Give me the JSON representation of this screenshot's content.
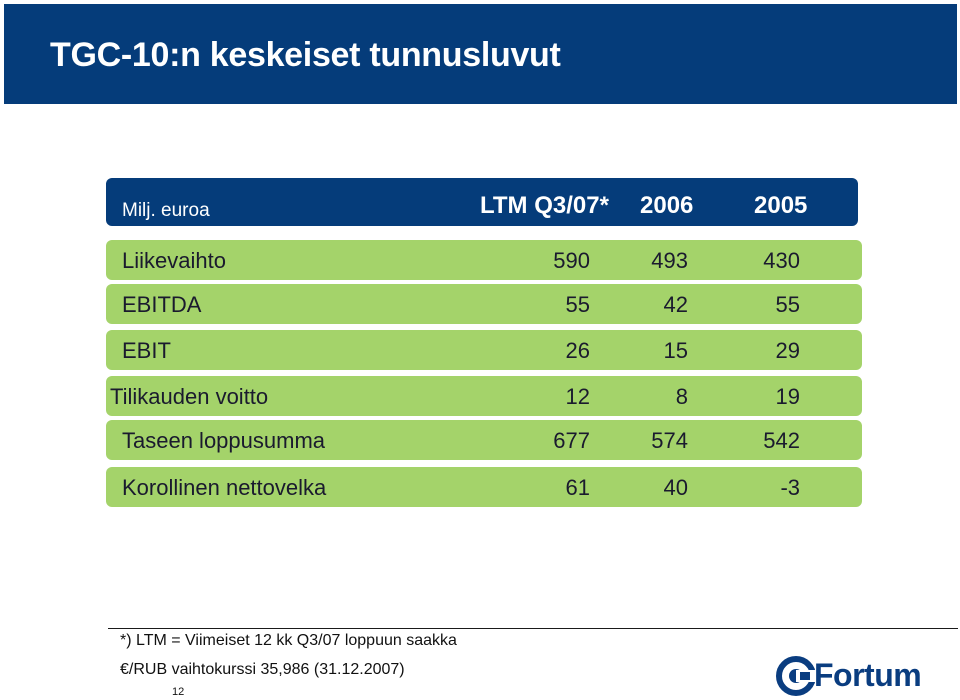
{
  "slide": {
    "title": "TGC-10:n keskeiset tunnusluvut",
    "page_number": "12"
  },
  "table": {
    "unit_label": "Milj. euroa",
    "columns": [
      "LTM Q3/07*",
      "2006",
      "2005"
    ],
    "rows": [
      {
        "label": "Liikevaihto",
        "values": [
          "590",
          "493",
          "430"
        ]
      },
      {
        "label": "EBITDA",
        "values": [
          "55",
          "42",
          "55"
        ]
      },
      {
        "label": "EBIT",
        "values": [
          "26",
          "15",
          "29"
        ]
      },
      {
        "label": "Tilikauden voitto",
        "values": [
          "12",
          "8",
          "19"
        ]
      },
      {
        "label": "Taseen loppusumma",
        "values": [
          "677",
          "574",
          "542"
        ]
      },
      {
        "label": "Korollinen nettovelka",
        "values": [
          "61",
          "40",
          "-3"
        ]
      }
    ]
  },
  "footnotes": {
    "ltm": "*) LTM = Viimeiset 12 kk Q3/07 loppuun saakka",
    "fx": "€/RUB vaihtokurssi 35,986 (31.12.2007)"
  },
  "logo": {
    "text": "Fortum",
    "icon": "fortum-logo-icon",
    "color": "#0a3d80"
  },
  "colors": {
    "title_bar": "#053c7a",
    "row_fill": "#a4d36a"
  }
}
